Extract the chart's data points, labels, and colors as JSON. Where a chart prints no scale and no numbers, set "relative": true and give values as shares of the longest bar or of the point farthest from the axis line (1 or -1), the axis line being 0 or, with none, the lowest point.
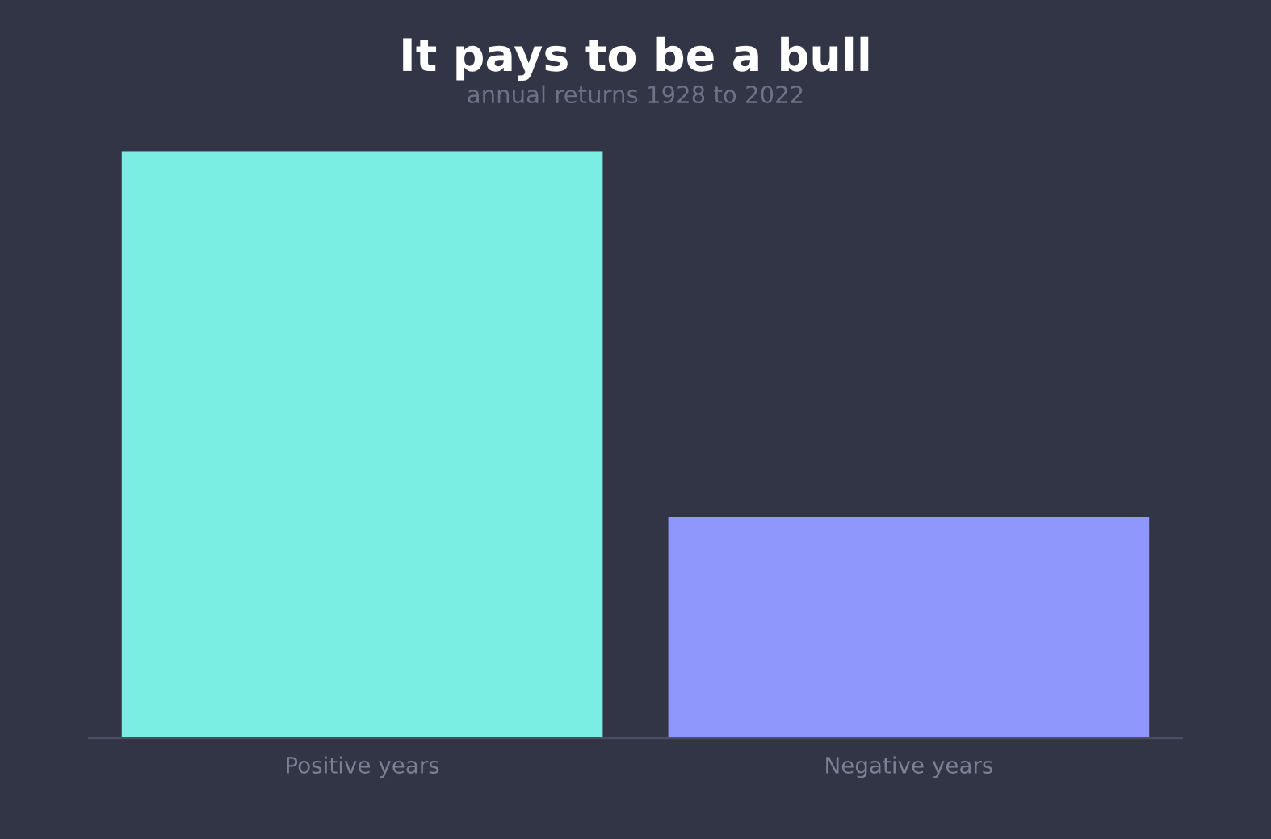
{
  "chart_data": {
    "type": "bar",
    "title": "It pays to be a bull",
    "subtitle": "annual returns 1928 to 2022",
    "categories": [
      "Positive years",
      "Negative years"
    ],
    "values": [
      1,
      0.3768
    ],
    "colors": [
      "#7aeee2",
      "#8f97fd"
    ],
    "relative": true,
    "grid": false,
    "legend": false
  }
}
